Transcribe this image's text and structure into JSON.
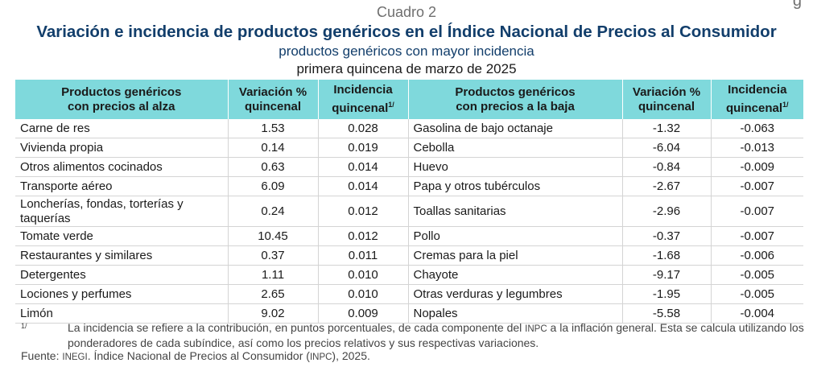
{
  "corner_mark": "g",
  "header": {
    "label": "Cuadro 2",
    "title": "Variación e incidencia de productos genéricos en el Índice Nacional de Precios al Consumidor",
    "subtitle": "productos genéricos con mayor incidencia",
    "period": "primera quincena de marzo de 2025"
  },
  "columns": {
    "up_product_line1": "Productos genéricos",
    "up_product_line2": "con precios al alza",
    "up_var_line1": "Variación %",
    "up_var_line2": "quincenal",
    "up_inc_line1": "Incidencia",
    "up_inc_line2": "quincenal",
    "up_inc_note": "1/",
    "down_product_line1": "Productos genéricos",
    "down_product_line2": "con precios a la baja",
    "down_var_line1": "Variación %",
    "down_var_line2": "quincenal",
    "down_inc_line1": "Incidencia",
    "down_inc_line2": "quincenal",
    "down_inc_note": "1/"
  },
  "rows": [
    {
      "up_product": "Carne de res",
      "up_var": "1.53",
      "up_inc": "0.028",
      "down_product": "Gasolina de bajo octanaje",
      "down_var": "-1.32",
      "down_inc": "-0.063"
    },
    {
      "up_product": "Vivienda propia",
      "up_var": "0.14",
      "up_inc": "0.019",
      "down_product": "Cebolla",
      "down_var": "-6.04",
      "down_inc": "-0.013"
    },
    {
      "up_product": "Otros alimentos cocinados",
      "up_var": "0.63",
      "up_inc": "0.014",
      "down_product": "Huevo",
      "down_var": "-0.84",
      "down_inc": "-0.009"
    },
    {
      "up_product": "Transporte aéreo",
      "up_var": "6.09",
      "up_inc": "0.014",
      "down_product": "Papa y otros tubérculos",
      "down_var": "-2.67",
      "down_inc": "-0.007"
    },
    {
      "up_product": "Loncherías, fondas, torterías y taquerías",
      "up_var": "0.24",
      "up_inc": "0.012",
      "down_product": "Toallas sanitarias",
      "down_var": "-2.96",
      "down_inc": "-0.007"
    },
    {
      "up_product": "Tomate verde",
      "up_var": "10.45",
      "up_inc": "0.012",
      "down_product": "Pollo",
      "down_var": "-0.37",
      "down_inc": "-0.007"
    },
    {
      "up_product": "Restaurantes y similares",
      "up_var": "0.37",
      "up_inc": "0.011",
      "down_product": "Cremas para la piel",
      "down_var": "-1.68",
      "down_inc": "-0.006"
    },
    {
      "up_product": "Detergentes",
      "up_var": "1.11",
      "up_inc": "0.010",
      "down_product": "Chayote",
      "down_var": "-9.17",
      "down_inc": "-0.005"
    },
    {
      "up_product": "Lociones y perfumes",
      "up_var": "2.65",
      "up_inc": "0.010",
      "down_product": "Otras verduras y legumbres",
      "down_var": "-1.95",
      "down_inc": "-0.005"
    },
    {
      "up_product": "Limón",
      "up_var": "9.02",
      "up_inc": "0.009",
      "down_product": "Nopales",
      "down_var": "-5.58",
      "down_inc": "-0.004"
    }
  ],
  "footnote": {
    "mark": "1/",
    "text_a": "La incidencia se refiere a la contribución, en puntos porcentuales, de cada componente del",
    "inpc": "INPC",
    "text_b": "a la inflación general. Esta se calcula utilizando los ponderadores de cada subíndice, así como los precios relativos y sus respectivas variaciones."
  },
  "source": {
    "label": "Fuente:",
    "inegi": "INEGI",
    "text_a": ". Índice Nacional de Precios al Consumidor (",
    "inpc": "INPC",
    "text_b": "), 2025."
  }
}
